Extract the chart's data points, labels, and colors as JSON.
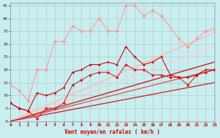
{
  "xlabel": "Vent moyen/en rafales ( km/h )",
  "xlim": [
    0,
    23
  ],
  "ylim": [
    0,
    46
  ],
  "yticks": [
    0,
    5,
    10,
    15,
    20,
    25,
    30,
    35,
    40,
    45
  ],
  "xticks": [
    0,
    1,
    2,
    3,
    4,
    5,
    6,
    7,
    8,
    9,
    10,
    11,
    12,
    13,
    14,
    15,
    16,
    17,
    18,
    19,
    20,
    21,
    22,
    23
  ],
  "background_color": "#c8eef0",
  "grid_color": "#b0c8cc",
  "lines": [
    {
      "x": [
        0,
        1,
        2,
        3,
        4,
        5,
        6,
        7,
        8,
        9,
        10,
        11,
        12,
        13,
        14,
        15,
        16,
        17,
        19,
        20,
        21,
        22,
        23
      ],
      "y": [
        14,
        12,
        8,
        20,
        20,
        31,
        31,
        37,
        35,
        35,
        40,
        35,
        35,
        45,
        45,
        41,
        43,
        41,
        32,
        29,
        32,
        35,
        36
      ],
      "color": "#ff9999",
      "lw": 0.8,
      "marker": "D",
      "ms": 2.0,
      "zorder": 3
    },
    {
      "x": [
        0,
        1,
        2,
        3,
        4,
        5,
        6,
        7,
        8,
        9,
        10,
        11,
        12,
        13,
        14,
        15,
        16,
        17,
        18,
        19,
        20,
        21,
        22,
        23
      ],
      "y": [
        7,
        5,
        4,
        11,
        10,
        11,
        13,
        19,
        20,
        22,
        22,
        23,
        22,
        29,
        25,
        22,
        23,
        25,
        18,
        17,
        17,
        18,
        20,
        20
      ],
      "color": "#cc0000",
      "lw": 0.8,
      "marker": "+",
      "ms": 3.0,
      "zorder": 4
    },
    {
      "x": [
        0,
        1,
        2,
        3,
        4,
        5,
        6,
        7,
        8,
        9,
        10,
        11,
        12,
        13,
        14,
        15,
        16,
        17,
        18,
        19,
        20,
        21,
        22,
        23
      ],
      "y": [
        7,
        5,
        4,
        1,
        5,
        5,
        7,
        14,
        16,
        18,
        19,
        19,
        17,
        22,
        20,
        20,
        18,
        18,
        17,
        17,
        14,
        18,
        19,
        20
      ],
      "color": "#dd2222",
      "lw": 0.8,
      "marker": "D",
      "ms": 1.8,
      "zorder": 3
    },
    {
      "x": [
        0,
        23
      ],
      "y": [
        0,
        23
      ],
      "color": "#cc3333",
      "lw": 1.2,
      "marker": null,
      "ms": 0,
      "zorder": 2
    },
    {
      "x": [
        0,
        23
      ],
      "y": [
        0,
        34.5
      ],
      "color": "#ffbbbb",
      "lw": 1.2,
      "marker": null,
      "ms": 0,
      "zorder": 2
    },
    {
      "x": [
        0,
        23
      ],
      "y": [
        0,
        29
      ],
      "color": "#ffcccc",
      "lw": 1.0,
      "marker": null,
      "ms": 0,
      "zorder": 2
    },
    {
      "x": [
        0,
        23
      ],
      "y": [
        0,
        20
      ],
      "color": "#dd5555",
      "lw": 1.0,
      "marker": null,
      "ms": 0,
      "zorder": 2
    },
    {
      "x": [
        0,
        23
      ],
      "y": [
        0,
        15
      ],
      "color": "#cc2222",
      "lw": 1.0,
      "marker": null,
      "ms": 0,
      "zorder": 2
    }
  ]
}
